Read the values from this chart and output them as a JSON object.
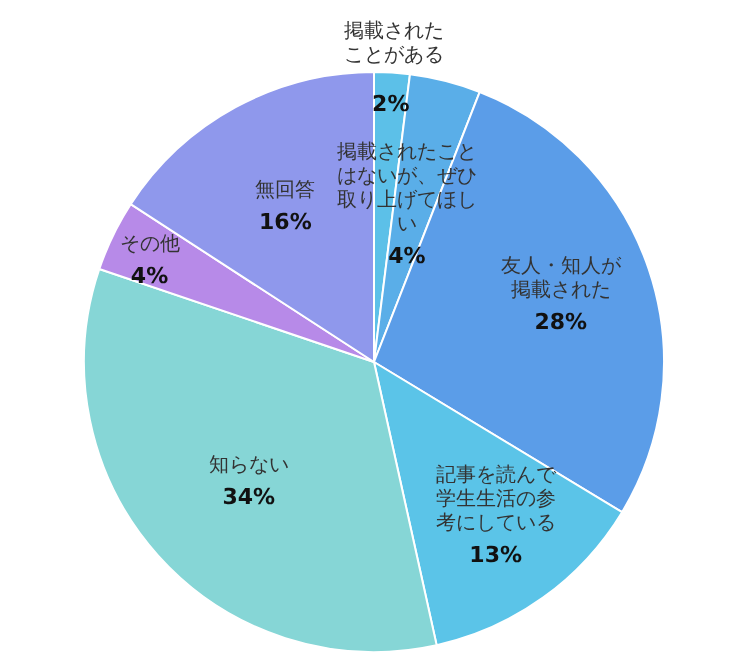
{
  "chart_data": {
    "type": "pie",
    "categories": [
      "掲載されたことがある",
      "掲載されたことはないが、ぜひ取り上げてほしい",
      "友人・知人が掲載された",
      "記事を読んで学生生活の参考にしている",
      "知らない",
      "その他",
      "無回答"
    ],
    "values": [
      2,
      4,
      28,
      13,
      34,
      4,
      16
    ],
    "colors": [
      "#5cc0e8",
      "#5aaee8",
      "#5b9de8",
      "#5bc4e8",
      "#86d6d6",
      "#b78ae8",
      "#8f98ec"
    ],
    "value_labels": [
      "2%",
      "4%",
      "28%",
      "13%",
      "34%",
      "4%",
      "16%"
    ]
  }
}
